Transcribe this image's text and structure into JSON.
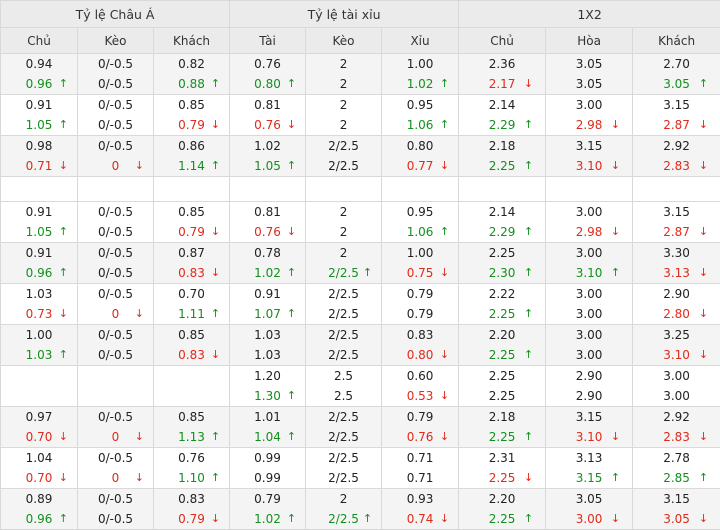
{
  "header": {
    "groups": [
      "Tỷ lệ Châu Á",
      "Tỷ lệ tài xỉu",
      "1X2"
    ],
    "columns": [
      "Chủ",
      "Kèo",
      "Khách",
      "Tài",
      "Kèo",
      "Xỉu",
      "Chủ",
      "Hòa",
      "Khách"
    ]
  },
  "colors": {
    "up": "#12901c",
    "down": "#e02a1a"
  },
  "rows": [
    {
      "type": "data",
      "c": [
        [
          {
            "v": "0.94"
          },
          {
            "v": "0.96",
            "d": "up"
          }
        ],
        [
          {
            "v": "0/-0.5"
          },
          {
            "v": "0/-0.5"
          }
        ],
        [
          {
            "v": "0.82"
          },
          {
            "v": "0.88",
            "d": "up"
          }
        ],
        [
          {
            "v": "0.76"
          },
          {
            "v": "0.80",
            "d": "up"
          }
        ],
        [
          {
            "v": "2"
          },
          {
            "v": "2"
          }
        ],
        [
          {
            "v": "1.00"
          },
          {
            "v": "1.02",
            "d": "up"
          }
        ],
        [
          {
            "v": "2.36"
          },
          {
            "v": "2.17",
            "d": "down"
          }
        ],
        [
          {
            "v": "3.05"
          },
          {
            "v": "3.05"
          }
        ],
        [
          {
            "v": "2.70"
          },
          {
            "v": "3.05",
            "d": "up"
          }
        ]
      ]
    },
    {
      "type": "data",
      "c": [
        [
          {
            "v": "0.91"
          },
          {
            "v": "1.05",
            "d": "up"
          }
        ],
        [
          {
            "v": "0/-0.5"
          },
          {
            "v": "0/-0.5"
          }
        ],
        [
          {
            "v": "0.85"
          },
          {
            "v": "0.79",
            "d": "down"
          }
        ],
        [
          {
            "v": "0.81"
          },
          {
            "v": "0.76",
            "d": "down"
          }
        ],
        [
          {
            "v": "2"
          },
          {
            "v": "2"
          }
        ],
        [
          {
            "v": "0.95"
          },
          {
            "v": "1.06",
            "d": "up"
          }
        ],
        [
          {
            "v": "2.14"
          },
          {
            "v": "2.29",
            "d": "up"
          }
        ],
        [
          {
            "v": "3.00"
          },
          {
            "v": "2.98",
            "d": "down"
          }
        ],
        [
          {
            "v": "3.15"
          },
          {
            "v": "2.87",
            "d": "down"
          }
        ]
      ]
    },
    {
      "type": "data",
      "c": [
        [
          {
            "v": "0.98"
          },
          {
            "v": "0.71",
            "d": "down"
          }
        ],
        [
          {
            "v": "0/-0.5"
          },
          {
            "v": "0",
            "d": "down"
          }
        ],
        [
          {
            "v": "0.86"
          },
          {
            "v": "1.14",
            "d": "up"
          }
        ],
        [
          {
            "v": "1.02"
          },
          {
            "v": "1.05",
            "d": "up"
          }
        ],
        [
          {
            "v": "2/2.5"
          },
          {
            "v": "2/2.5"
          }
        ],
        [
          {
            "v": "0.80"
          },
          {
            "v": "0.77",
            "d": "down"
          }
        ],
        [
          {
            "v": "2.18"
          },
          {
            "v": "2.25",
            "d": "up"
          }
        ],
        [
          {
            "v": "3.15"
          },
          {
            "v": "3.10",
            "d": "down"
          }
        ],
        [
          {
            "v": "2.92"
          },
          {
            "v": "2.83",
            "d": "down"
          }
        ]
      ]
    },
    {
      "type": "gap"
    },
    {
      "type": "data",
      "c": [
        [
          {
            "v": "0.91"
          },
          {
            "v": "1.05",
            "d": "up"
          }
        ],
        [
          {
            "v": "0/-0.5"
          },
          {
            "v": "0/-0.5"
          }
        ],
        [
          {
            "v": "0.85"
          },
          {
            "v": "0.79",
            "d": "down"
          }
        ],
        [
          {
            "v": "0.81"
          },
          {
            "v": "0.76",
            "d": "down"
          }
        ],
        [
          {
            "v": "2"
          },
          {
            "v": "2"
          }
        ],
        [
          {
            "v": "0.95"
          },
          {
            "v": "1.06",
            "d": "up"
          }
        ],
        [
          {
            "v": "2.14"
          },
          {
            "v": "2.29",
            "d": "up"
          }
        ],
        [
          {
            "v": "3.00"
          },
          {
            "v": "2.98",
            "d": "down"
          }
        ],
        [
          {
            "v": "3.15"
          },
          {
            "v": "2.87",
            "d": "down"
          }
        ]
      ]
    },
    {
      "type": "data",
      "c": [
        [
          {
            "v": "0.91"
          },
          {
            "v": "0.96",
            "d": "up"
          }
        ],
        [
          {
            "v": "0/-0.5"
          },
          {
            "v": "0/-0.5"
          }
        ],
        [
          {
            "v": "0.87"
          },
          {
            "v": "0.83",
            "d": "down"
          }
        ],
        [
          {
            "v": "0.78"
          },
          {
            "v": "1.02",
            "d": "up"
          }
        ],
        [
          {
            "v": "2"
          },
          {
            "v": "2/2.5",
            "d": "up"
          }
        ],
        [
          {
            "v": "1.00"
          },
          {
            "v": "0.75",
            "d": "down"
          }
        ],
        [
          {
            "v": "2.25"
          },
          {
            "v": "2.30",
            "d": "up"
          }
        ],
        [
          {
            "v": "3.00"
          },
          {
            "v": "3.10",
            "d": "up"
          }
        ],
        [
          {
            "v": "3.30"
          },
          {
            "v": "3.13",
            "d": "down"
          }
        ]
      ]
    },
    {
      "type": "data",
      "c": [
        [
          {
            "v": "1.03"
          },
          {
            "v": "0.73",
            "d": "down"
          }
        ],
        [
          {
            "v": "0/-0.5"
          },
          {
            "v": "0",
            "d": "down"
          }
        ],
        [
          {
            "v": "0.70"
          },
          {
            "v": "1.11",
            "d": "up"
          }
        ],
        [
          {
            "v": "0.91"
          },
          {
            "v": "1.07",
            "d": "up"
          }
        ],
        [
          {
            "v": "2/2.5"
          },
          {
            "v": "2/2.5"
          }
        ],
        [
          {
            "v": "0.79"
          },
          {
            "v": "0.79"
          }
        ],
        [
          {
            "v": "2.22"
          },
          {
            "v": "2.25",
            "d": "up"
          }
        ],
        [
          {
            "v": "3.00"
          },
          {
            "v": "3.00"
          }
        ],
        [
          {
            "v": "2.90"
          },
          {
            "v": "2.80",
            "d": "down"
          }
        ]
      ]
    },
    {
      "type": "data",
      "c": [
        [
          {
            "v": "1.00"
          },
          {
            "v": "1.03",
            "d": "up"
          }
        ],
        [
          {
            "v": "0/-0.5"
          },
          {
            "v": "0/-0.5"
          }
        ],
        [
          {
            "v": "0.85"
          },
          {
            "v": "0.83",
            "d": "down"
          }
        ],
        [
          {
            "v": "1.03"
          },
          {
            "v": "1.03"
          }
        ],
        [
          {
            "v": "2/2.5"
          },
          {
            "v": "2/2.5"
          }
        ],
        [
          {
            "v": "0.83"
          },
          {
            "v": "0.80",
            "d": "down"
          }
        ],
        [
          {
            "v": "2.20"
          },
          {
            "v": "2.25",
            "d": "up"
          }
        ],
        [
          {
            "v": "3.00"
          },
          {
            "v": "3.00"
          }
        ],
        [
          {
            "v": "3.25"
          },
          {
            "v": "3.10",
            "d": "down"
          }
        ]
      ]
    },
    {
      "type": "data",
      "c": [
        [],
        [],
        [],
        [
          {
            "v": "1.20"
          },
          {
            "v": "1.30",
            "d": "up"
          }
        ],
        [
          {
            "v": "2.5"
          },
          {
            "v": "2.5"
          }
        ],
        [
          {
            "v": "0.60"
          },
          {
            "v": "0.53",
            "d": "down"
          }
        ],
        [
          {
            "v": "2.25"
          },
          {
            "v": "2.25"
          }
        ],
        [
          {
            "v": "2.90"
          },
          {
            "v": "2.90"
          }
        ],
        [
          {
            "v": "3.00"
          },
          {
            "v": "3.00"
          }
        ]
      ]
    },
    {
      "type": "data",
      "c": [
        [
          {
            "v": "0.97"
          },
          {
            "v": "0.70",
            "d": "down"
          }
        ],
        [
          {
            "v": "0/-0.5"
          },
          {
            "v": "0",
            "d": "down"
          }
        ],
        [
          {
            "v": "0.85"
          },
          {
            "v": "1.13",
            "d": "up"
          }
        ],
        [
          {
            "v": "1.01"
          },
          {
            "v": "1.04",
            "d": "up"
          }
        ],
        [
          {
            "v": "2/2.5"
          },
          {
            "v": "2/2.5"
          }
        ],
        [
          {
            "v": "0.79"
          },
          {
            "v": "0.76",
            "d": "down"
          }
        ],
        [
          {
            "v": "2.18"
          },
          {
            "v": "2.25",
            "d": "up"
          }
        ],
        [
          {
            "v": "3.15"
          },
          {
            "v": "3.10",
            "d": "down"
          }
        ],
        [
          {
            "v": "2.92"
          },
          {
            "v": "2.83",
            "d": "down"
          }
        ]
      ]
    },
    {
      "type": "data",
      "c": [
        [
          {
            "v": "1.04"
          },
          {
            "v": "0.70",
            "d": "down"
          }
        ],
        [
          {
            "v": "0/-0.5"
          },
          {
            "v": "0",
            "d": "down"
          }
        ],
        [
          {
            "v": "0.76"
          },
          {
            "v": "1.10",
            "d": "up"
          }
        ],
        [
          {
            "v": "0.99"
          },
          {
            "v": "0.99"
          }
        ],
        [
          {
            "v": "2/2.5"
          },
          {
            "v": "2/2.5"
          }
        ],
        [
          {
            "v": "0.71"
          },
          {
            "v": "0.71"
          }
        ],
        [
          {
            "v": "2.31"
          },
          {
            "v": "2.25",
            "d": "down"
          }
        ],
        [
          {
            "v": "3.13"
          },
          {
            "v": "3.15",
            "d": "up"
          }
        ],
        [
          {
            "v": "2.78"
          },
          {
            "v": "2.85",
            "d": "up"
          }
        ]
      ]
    },
    {
      "type": "data",
      "c": [
        [
          {
            "v": "0.89"
          },
          {
            "v": "0.96",
            "d": "up"
          }
        ],
        [
          {
            "v": "0/-0.5"
          },
          {
            "v": "0/-0.5"
          }
        ],
        [
          {
            "v": "0.83"
          },
          {
            "v": "0.79",
            "d": "down"
          }
        ],
        [
          {
            "v": "0.79"
          },
          {
            "v": "1.02",
            "d": "up"
          }
        ],
        [
          {
            "v": "2"
          },
          {
            "v": "2/2.5",
            "d": "up"
          }
        ],
        [
          {
            "v": "0.93"
          },
          {
            "v": "0.74",
            "d": "down"
          }
        ],
        [
          {
            "v": "2.20"
          },
          {
            "v": "2.25",
            "d": "up"
          }
        ],
        [
          {
            "v": "3.05"
          },
          {
            "v": "3.00",
            "d": "down"
          }
        ],
        [
          {
            "v": "3.15"
          },
          {
            "v": "3.05",
            "d": "down"
          }
        ]
      ]
    }
  ]
}
